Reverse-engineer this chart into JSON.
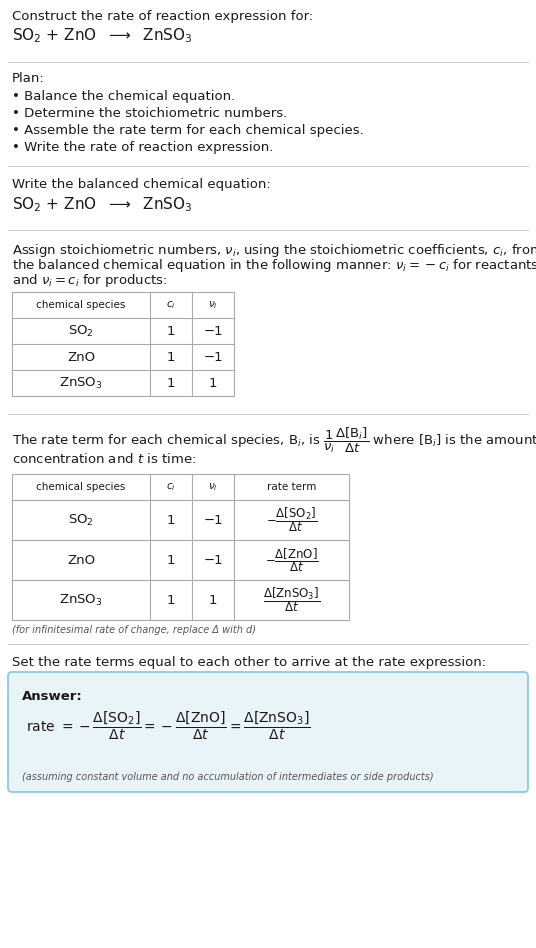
{
  "bg_color": "#ffffff",
  "text_color": "#1a1a1a",
  "gray_text": "#555555",
  "answer_bg": "#e8f4f8",
  "answer_border": "#7ec8e3",
  "title_line1": "Construct the rate of reaction expression for:",
  "title_line2_parts": [
    "SO",
    "2",
    " + ZnO  ⟶  ZnSO",
    "3"
  ],
  "plan_header": "Plan:",
  "plan_items": [
    "• Balance the chemical equation.",
    "• Determine the stoichiometric numbers.",
    "• Assemble the rate term for each chemical species.",
    "• Write the rate of reaction expression."
  ],
  "balanced_header": "Write the balanced chemical equation:",
  "table1_headers": [
    "chemical species",
    "c_i",
    "v_i"
  ],
  "table1_data": [
    [
      "SO2",
      "1",
      "−1"
    ],
    [
      "ZnO",
      "1",
      "−1"
    ],
    [
      "ZnSO3",
      "1",
      "1"
    ]
  ],
  "table2_headers": [
    "chemical species",
    "c_i",
    "v_i",
    "rate term"
  ],
  "table2_data": [
    [
      "SO2",
      "1",
      "−1",
      "so2"
    ],
    [
      "ZnO",
      "1",
      "−1",
      "zno"
    ],
    [
      "ZnSO3",
      "1",
      "1",
      "znso3"
    ]
  ],
  "infinitesimal_note": "(for infinitesimal rate of change, replace Δ with d)",
  "set_equal_text": "Set the rate terms equal to each other to arrive at the rate expression:",
  "answer_label": "Answer:",
  "answer_note": "(assuming constant volume and no accumulation of intermediates or side products)",
  "line_color": "#cccccc",
  "table_border_color": "#aaaaaa"
}
